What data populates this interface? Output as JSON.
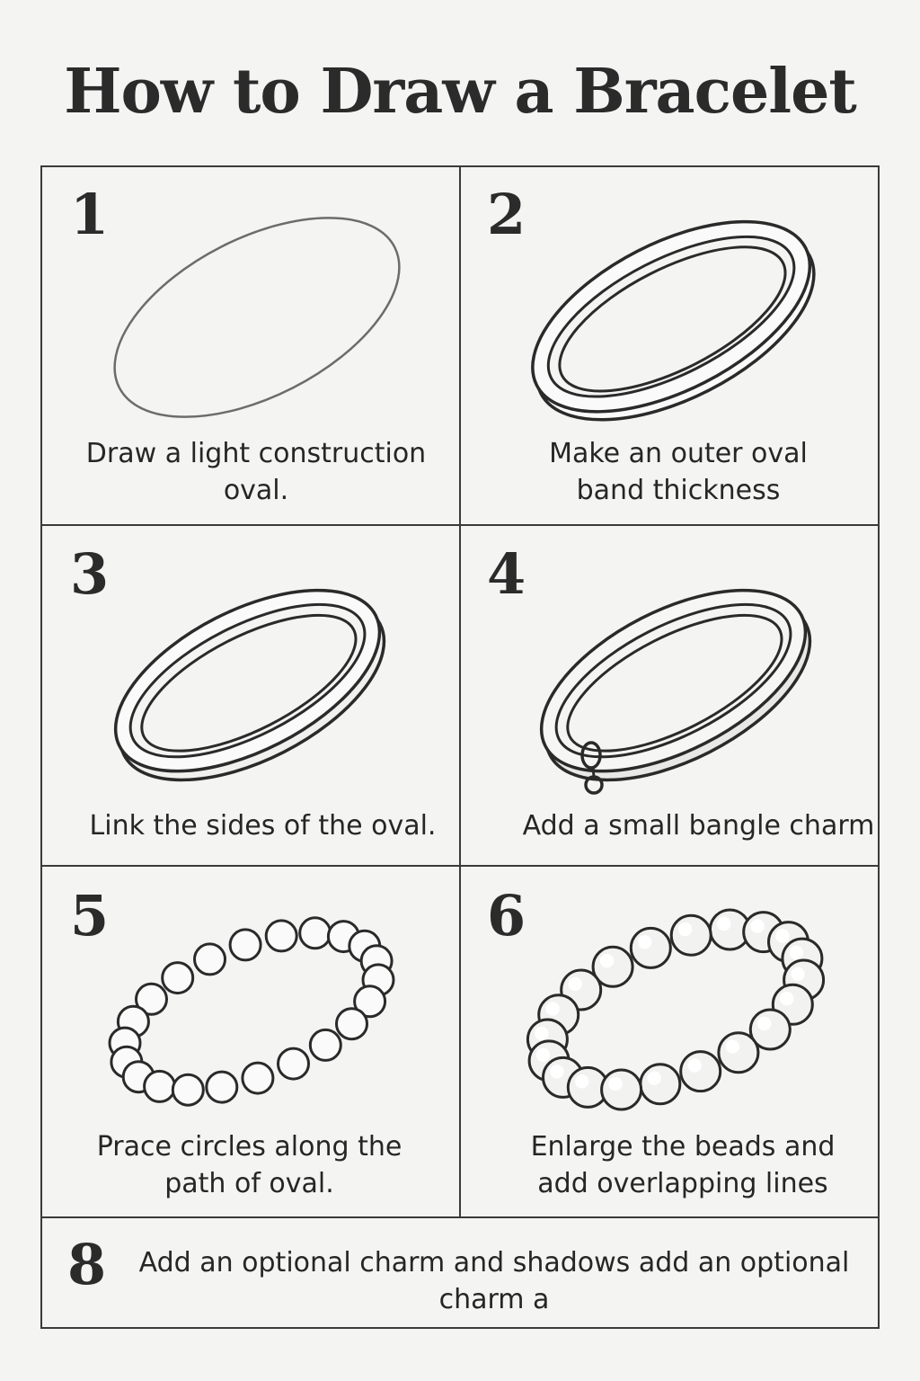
{
  "title": "How to Draw a Bracelet",
  "steps": [
    {
      "number": "1",
      "caption": "Draw a light construction oval."
    },
    {
      "number": "2",
      "caption": "Make an outer oval band thickness"
    },
    {
      "number": "3",
      "caption": "Link the sides of the oval."
    },
    {
      "number": "4",
      "caption": "Add a small bangle charm"
    },
    {
      "number": "5",
      "caption": "Prace circles along the path of oval."
    },
    {
      "number": "6",
      "caption": "Enlarge the beads and add overlapping lines"
    },
    {
      "number": "8",
      "caption": "Add an optional charm and shadows add an optional charm a"
    }
  ]
}
